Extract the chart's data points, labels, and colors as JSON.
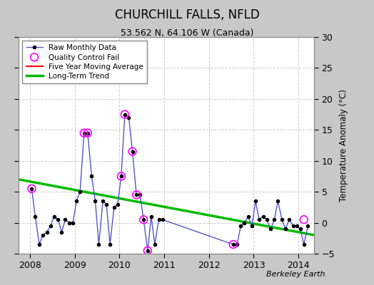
{
  "title": "CHURCHILL FALLS, NFLD",
  "subtitle": "53.562 N, 64.106 W (Canada)",
  "ylabel": "Temperature Anomaly (°C)",
  "watermark": "Berkeley Earth",
  "ylim": [
    -5,
    30
  ],
  "yticks": [
    -5,
    0,
    5,
    10,
    15,
    20,
    25,
    30
  ],
  "xlim": [
    2007.75,
    2014.35
  ],
  "xticks": [
    2008,
    2009,
    2010,
    2011,
    2012,
    2013,
    2014
  ],
  "bg_color": "#c8c8c8",
  "plot_bg_color": "#ffffff",
  "raw_data_x": [
    2008.04,
    2008.12,
    2008.21,
    2008.29,
    2008.38,
    2008.46,
    2008.54,
    2008.63,
    2008.71,
    2008.79,
    2008.88,
    2008.96,
    2009.04,
    2009.12,
    2009.21,
    2009.29,
    2009.38,
    2009.46,
    2009.54,
    2009.63,
    2009.71,
    2009.79,
    2009.88,
    2009.96,
    2010.04,
    2010.12,
    2010.21,
    2010.29,
    2010.38,
    2010.46,
    2010.54,
    2010.63,
    2010.71,
    2010.79,
    2010.88,
    2010.96,
    2012.54,
    2012.63,
    2012.71,
    2012.79,
    2012.88,
    2012.96,
    2013.04,
    2013.12,
    2013.21,
    2013.29,
    2013.38,
    2013.46,
    2013.54,
    2013.63,
    2013.71,
    2013.79,
    2013.88,
    2013.96,
    2014.04,
    2014.12,
    2014.21
  ],
  "raw_data_y": [
    5.5,
    1.0,
    -3.5,
    -2.0,
    -1.5,
    -0.5,
    1.0,
    0.5,
    -1.5,
    0.5,
    0.0,
    0.0,
    3.5,
    5.0,
    14.5,
    14.5,
    7.5,
    3.5,
    -3.5,
    3.5,
    3.0,
    -3.5,
    2.5,
    3.0,
    7.5,
    17.5,
    17.0,
    11.5,
    4.5,
    4.5,
    0.5,
    -4.5,
    1.0,
    -3.5,
    0.5,
    0.5,
    -3.5,
    -3.5,
    -0.5,
    0.0,
    1.0,
    -0.5,
    3.5,
    0.5,
    1.0,
    0.5,
    -1.0,
    0.5,
    3.5,
    0.5,
    -1.0,
    0.5,
    -0.5,
    -0.5,
    -1.0,
    -3.5,
    -0.5
  ],
  "qc_fail_x": [
    2008.04,
    2009.21,
    2009.29,
    2010.04,
    2010.12,
    2010.29,
    2010.38,
    2010.54,
    2010.63,
    2012.54,
    2014.12
  ],
  "qc_fail_y": [
    5.5,
    14.5,
    14.5,
    7.5,
    17.5,
    11.5,
    4.5,
    0.5,
    -4.5,
    -3.5,
    0.5
  ],
  "trend_x": [
    2007.75,
    2014.35
  ],
  "trend_y": [
    7.0,
    -2.0
  ],
  "moving_avg_x": [],
  "moving_avg_y": [],
  "line_color": "#5555cc",
  "dot_color": "#000000",
  "qc_color": "#ff00ff",
  "trend_color": "#00bb00",
  "moving_avg_color": "#ff0000"
}
